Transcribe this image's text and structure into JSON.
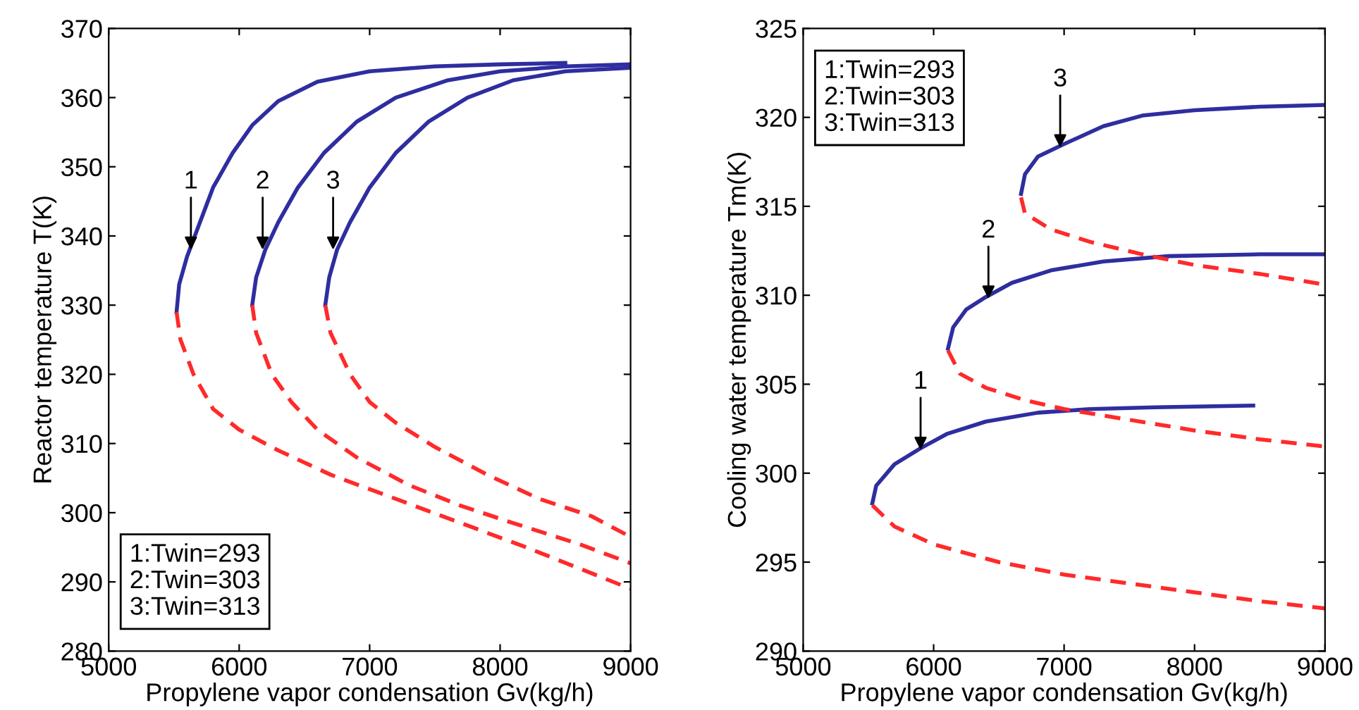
{
  "chart_data": [
    {
      "type": "line",
      "xlabel": "Propylene vapor condensation Gv(kg/h)",
      "ylabel": "Reactor temperature T(K)",
      "xlim": [
        5000,
        9000
      ],
      "ylim": [
        280,
        370
      ],
      "xticks": [
        5000,
        6000,
        7000,
        8000,
        9000
      ],
      "yticks": [
        280,
        290,
        300,
        310,
        320,
        330,
        340,
        350,
        360,
        370
      ],
      "grid": false,
      "annotations": [
        "1:Twin=293\n2:Twin=303\n3:Twin=313",
        {
          "text": "1",
          "x": 5630,
          "y": 338
        },
        {
          "text": "2",
          "x": 6180,
          "y": 338
        },
        {
          "text": "3",
          "x": 6720,
          "y": 338
        }
      ],
      "series": [
        {
          "color": "#2e2ea0",
          "line_style": "solid",
          "x": [
            5520,
            5540,
            5600,
            5700,
            5800,
            5950,
            6100,
            6300,
            6600,
            7000,
            7500,
            8000,
            8500
          ],
          "values": [
            329,
            333,
            337,
            342,
            347,
            352,
            356,
            359.5,
            362.3,
            363.8,
            364.5,
            364.8,
            365
          ]
        },
        {
          "color": "#2e2ea0",
          "line_style": "solid",
          "x": [
            6100,
            6130,
            6200,
            6300,
            6450,
            6650,
            6900,
            7200,
            7600,
            8000,
            8500,
            9000
          ],
          "values": [
            330,
            334,
            338,
            342,
            347,
            352,
            356.5,
            360,
            362.5,
            363.8,
            364.5,
            364.8
          ]
        },
        {
          "color": "#2e2ea0",
          "line_style": "solid",
          "x": [
            6660,
            6690,
            6750,
            6850,
            7000,
            7200,
            7450,
            7750,
            8100,
            8500,
            9000
          ],
          "values": [
            330,
            334,
            338,
            342,
            347,
            352,
            356.5,
            360,
            362.5,
            363.8,
            364.3
          ]
        },
        {
          "color": "#ff2a2a",
          "line_style": "dashed",
          "x": [
            5520,
            5550,
            5650,
            5800,
            6000,
            6300,
            6700,
            7200,
            7700,
            8200,
            8600,
            9000
          ],
          "values": [
            329,
            325,
            320,
            315,
            312,
            309,
            305.5,
            302,
            298.5,
            295,
            292,
            289
          ]
        },
        {
          "color": "#ff2a2a",
          "line_style": "dashed",
          "x": [
            6100,
            6130,
            6250,
            6400,
            6600,
            6900,
            7300,
            7700,
            8100,
            8600,
            9000
          ],
          "values": [
            330,
            326,
            320,
            316,
            312,
            308,
            304,
            301,
            298.5,
            295.5,
            292.7
          ]
        },
        {
          "color": "#ff2a2a",
          "line_style": "dashed",
          "x": [
            6660,
            6700,
            6850,
            7000,
            7200,
            7500,
            7900,
            8300,
            8700,
            9000
          ],
          "values": [
            330,
            326,
            320,
            316,
            313,
            309.5,
            305.5,
            302,
            299.5,
            296.5
          ]
        }
      ]
    },
    {
      "type": "line",
      "xlabel": "Propylene vapor condensation Gv(kg/h)",
      "ylabel": "Cooling water temperature Tm(K)",
      "xlim": [
        5000,
        9000
      ],
      "ylim": [
        290,
        325
      ],
      "xticks": [
        5000,
        6000,
        7000,
        8000,
        9000
      ],
      "yticks": [
        290,
        295,
        300,
        305,
        310,
        315,
        320,
        325
      ],
      "grid": false,
      "annotations": [
        "1:Twin=293\n2:Twin=303\n3:Twin=313",
        {
          "text": "1",
          "x": 5900,
          "y": 301.3
        },
        {
          "text": "2",
          "x": 6420,
          "y": 309.8
        },
        {
          "text": "3",
          "x": 6970,
          "y": 318.3
        }
      ],
      "series": [
        {
          "color": "#2e2ea0",
          "line_style": "solid",
          "x": [
            5530,
            5560,
            5700,
            5900,
            6100,
            6400,
            6800,
            7200,
            7700,
            8450
          ],
          "values": [
            298.3,
            299.3,
            300.5,
            301.4,
            302.2,
            302.9,
            303.4,
            303.6,
            303.7,
            303.8
          ]
        },
        {
          "color": "#2e2ea0",
          "line_style": "solid",
          "x": [
            6110,
            6150,
            6250,
            6400,
            6600,
            6900,
            7300,
            7800,
            8500,
            9000
          ],
          "values": [
            307,
            308.2,
            309.2,
            309.9,
            310.7,
            311.4,
            311.9,
            312.2,
            312.3,
            312.3
          ]
        },
        {
          "color": "#2e2ea0",
          "line_style": "solid",
          "x": [
            6670,
            6700,
            6800,
            7000,
            7300,
            7600,
            8000,
            8500,
            9000
          ],
          "values": [
            315.7,
            316.8,
            317.8,
            318.5,
            319.5,
            320.1,
            320.4,
            320.6,
            320.7
          ]
        },
        {
          "color": "#ff2a2a",
          "line_style": "dashed",
          "x": [
            5530,
            5700,
            6000,
            6500,
            7000,
            7500,
            8000,
            8500,
            9000
          ],
          "values": [
            298.2,
            297,
            296,
            295,
            294.3,
            293.8,
            293.3,
            292.8,
            292.4
          ]
        },
        {
          "color": "#ff2a2a",
          "line_style": "dashed",
          "x": [
            6110,
            6200,
            6400,
            6700,
            7000,
            7500,
            8000,
            8500,
            9000
          ],
          "values": [
            306.9,
            305.6,
            304.8,
            304.1,
            303.6,
            303,
            302.4,
            301.9,
            301.5
          ]
        },
        {
          "color": "#ff2a2a",
          "line_style": "dashed",
          "x": [
            6670,
            6700,
            6900,
            7200,
            7600,
            8000,
            8500,
            9000
          ],
          "values": [
            315.5,
            314.6,
            313.7,
            313,
            312.3,
            311.7,
            311.2,
            310.6
          ]
        }
      ]
    }
  ]
}
